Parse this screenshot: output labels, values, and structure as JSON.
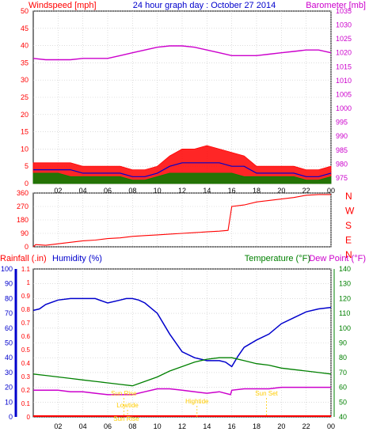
{
  "colors": {
    "wind": "#ff0000",
    "wind_avg": "#0000cc",
    "wind_gust_fill": "#008000",
    "barometer": "#cc00cc",
    "direction": "#ff0000",
    "rain": "#ff0000",
    "humidity": "#0000cc",
    "temperature": "#008000",
    "dewpoint": "#cc00cc",
    "events": "#ffcc00",
    "grid": "#c8c8c8",
    "axis": "#000000"
  },
  "chart_data": [
    {
      "type": "line",
      "title": "24 hour graph day : October 27 2014",
      "x_ticks": [
        "02",
        "04",
        "06",
        "08",
        "10",
        "12",
        "14",
        "16",
        "18",
        "20",
        "22",
        "00"
      ],
      "y_left_label": "Windspeed [mph]",
      "y_left_ticks": [
        "0",
        "5",
        "10",
        "15",
        "20",
        "25",
        "30",
        "35",
        "40",
        "45",
        "50"
      ],
      "y_left_lim": [
        0,
        50
      ],
      "y_right_label": "Barometer [mb]",
      "y_right_ticks": [
        "975",
        "980",
        "985",
        "990",
        "995",
        "1000",
        "1005",
        "1010",
        "1015",
        "1020",
        "1025",
        "1030",
        "1035"
      ],
      "y_right_lim": [
        973,
        1035
      ],
      "series": [
        {
          "key": "gust",
          "axis": "left",
          "x": [
            0,
            1,
            2,
            3,
            4,
            5,
            6,
            7,
            8,
            9,
            10,
            11,
            12,
            13,
            14,
            15,
            16,
            17,
            18,
            19,
            20,
            21,
            22,
            23,
            24
          ],
          "y": [
            6,
            6,
            6,
            6,
            5,
            5,
            5,
            5,
            4,
            4,
            5,
            8,
            10,
            10,
            11,
            10,
            9,
            8,
            5,
            5,
            5,
            5,
            4,
            4,
            5
          ]
        },
        {
          "key": "avg",
          "axis": "left",
          "x": [
            0,
            1,
            2,
            3,
            4,
            5,
            6,
            7,
            8,
            9,
            10,
            11,
            12,
            13,
            14,
            15,
            16,
            17,
            18,
            19,
            20,
            21,
            22,
            23,
            24
          ],
          "y": [
            4,
            4,
            4,
            4,
            3,
            3,
            3,
            3,
            2,
            2,
            3,
            5,
            6,
            6,
            6,
            6,
            5,
            5,
            3,
            3,
            3,
            3,
            2,
            2,
            3
          ]
        },
        {
          "key": "wind",
          "axis": "left",
          "x": [
            0,
            1,
            2,
            3,
            4,
            5,
            6,
            7,
            8,
            9,
            10,
            11,
            12,
            13,
            14,
            15,
            16,
            17,
            18,
            19,
            20,
            21,
            22,
            23,
            24
          ],
          "y": [
            3,
            3,
            3,
            2,
            2,
            2,
            2,
            2,
            1,
            1,
            2,
            3,
            3,
            3,
            3,
            3,
            3,
            2,
            2,
            2,
            2,
            2,
            1,
            1,
            2
          ]
        },
        {
          "key": "baro",
          "axis": "right",
          "x": [
            0,
            1,
            2,
            3,
            4,
            5,
            6,
            7,
            8,
            9,
            10,
            11,
            12,
            13,
            14,
            15,
            16,
            17,
            18,
            19,
            20,
            21,
            22,
            23,
            24
          ],
          "y": [
            1018,
            1017.5,
            1017.5,
            1017.5,
            1018,
            1018,
            1018,
            1019,
            1020,
            1021,
            1022,
            1022.5,
            1022.5,
            1022,
            1021,
            1020,
            1019,
            1019,
            1019,
            1019.5,
            1020,
            1020.5,
            1021,
            1021,
            1020
          ]
        }
      ]
    },
    {
      "type": "line",
      "y_left_ticks": [
        "0",
        "90",
        "180",
        "270",
        "360"
      ],
      "y_left_lim": [
        0,
        360
      ],
      "y_right_ticks": [
        "N",
        "W",
        "S",
        "E",
        "N"
      ],
      "series": [
        {
          "key": "dir",
          "x": [
            0,
            0.2,
            1,
            2,
            3,
            4,
            5,
            6,
            7,
            8,
            9,
            10,
            11,
            12,
            13,
            14,
            15,
            15.7,
            16,
            17,
            18,
            19,
            20,
            21,
            22,
            23,
            24
          ],
          "y": [
            0,
            15,
            10,
            20,
            30,
            40,
            45,
            55,
            60,
            70,
            75,
            80,
            85,
            90,
            95,
            100,
            105,
            110,
            270,
            280,
            300,
            310,
            320,
            330,
            345,
            350,
            350
          ]
        }
      ]
    },
    {
      "type": "line",
      "x_ticks": [
        "02",
        "04",
        "06",
        "08",
        "10",
        "12",
        "14",
        "16",
        "18",
        "20",
        "22",
        "00"
      ],
      "y_left_label": "Rainfall (.in)",
      "y_left_label2": "Humidity (%)",
      "y_right_label": "Temperature (°F)",
      "y_right_label2": "Dew Point (°F)",
      "y_hum_ticks": [
        "0",
        "10",
        "20",
        "30",
        "40",
        "50",
        "60",
        "70",
        "80",
        "90",
        "100"
      ],
      "y_hum_lim": [
        0,
        100
      ],
      "y_rain_ticks": [
        "0",
        "0.1",
        "0.2",
        "0.3",
        "0.4",
        "0.5",
        "0.6",
        "0.7",
        "0.8",
        "0.9",
        "1",
        "1.1"
      ],
      "y_temp_ticks": [
        "40",
        "50",
        "60",
        "70",
        "80",
        "90",
        "100",
        "110",
        "120",
        "130",
        "140"
      ],
      "y_temp_lim": [
        40,
        140
      ],
      "series": [
        {
          "key": "hum",
          "axis": "hum",
          "x": [
            0,
            0.5,
            1,
            2,
            3,
            4,
            5,
            6,
            7,
            7.5,
            8,
            8.5,
            9,
            10,
            11,
            12,
            13,
            14,
            15,
            15.5,
            16,
            16.5,
            17,
            18,
            19,
            20,
            21,
            22,
            23,
            24
          ],
          "y": [
            72,
            73,
            76,
            79,
            80,
            80,
            80,
            77,
            79,
            80,
            80,
            79,
            77,
            70,
            56,
            44,
            40,
            38,
            38,
            37,
            34,
            41,
            47,
            52,
            56,
            63,
            67,
            71,
            73,
            74
          ]
        },
        {
          "key": "temp",
          "axis": "temp",
          "x": [
            0,
            1,
            2,
            3,
            4,
            5,
            6,
            7,
            8,
            9,
            10,
            11,
            12,
            13,
            14,
            15,
            16,
            17,
            18,
            19,
            20,
            21,
            22,
            23,
            24
          ],
          "y": [
            69,
            68,
            67,
            66,
            65,
            64,
            63,
            62,
            61,
            64,
            67,
            71,
            74,
            77,
            79,
            80,
            80,
            78,
            76,
            75,
            73,
            72,
            71,
            70,
            69
          ]
        },
        {
          "key": "dew",
          "axis": "temp",
          "x": [
            0,
            1,
            2,
            3,
            4,
            5,
            6,
            7,
            8,
            9,
            10,
            11,
            12,
            13,
            14,
            15,
            15.9,
            16,
            17,
            18,
            19,
            20,
            21,
            22,
            23,
            24
          ],
          "y": [
            58,
            58,
            58,
            57,
            57,
            56,
            55,
            55,
            55,
            57,
            59,
            59,
            58,
            57,
            56,
            57,
            55,
            58,
            59,
            59,
            59,
            60,
            60,
            60,
            60,
            60
          ]
        }
      ],
      "events": [
        {
          "label": "Sun Rise",
          "x": 7.3
        },
        {
          "label": "Lowtide",
          "x": 7.6
        },
        {
          "label": "Hightide",
          "x": 13.2
        },
        {
          "label": "Sun Set",
          "x": 18.8
        },
        {
          "label": "Sun Rise",
          "x": 7.5
        }
      ]
    }
  ]
}
